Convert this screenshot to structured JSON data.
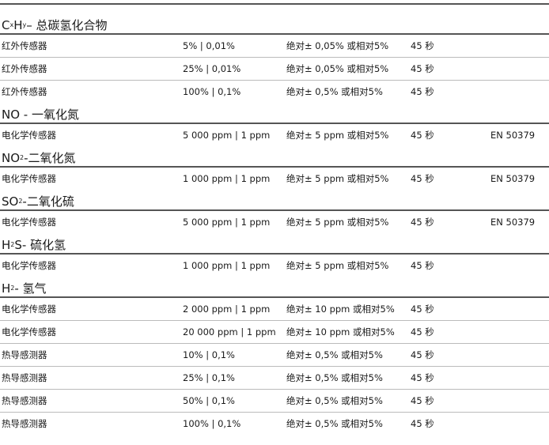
{
  "groups": [
    {
      "title_parts": [
        "C",
        "x",
        "H",
        "y",
        " – 总碳氢化合物"
      ],
      "rows": [
        [
          "红外传感器",
          "5% | 0,01%",
          "绝对± 0,05% 或相对5%",
          "45 秒",
          ""
        ],
        [
          "红外传感器",
          "25% | 0,01%",
          "绝对± 0,05% 或相对5%",
          "45 秒",
          ""
        ],
        [
          "红外传感器",
          "100% | 0,1%",
          "绝对± 0,5% 或相对5%",
          "45 秒",
          ""
        ]
      ]
    },
    {
      "title_parts": [
        "NO - 一氧化氮"
      ],
      "rows": [
        [
          "电化学传感器",
          "5 000 ppm | 1 ppm",
          "绝对± 5 ppm 或相对5%",
          "45 秒",
          "EN 50379"
        ]
      ]
    },
    {
      "title_parts": [
        "NO",
        "2",
        " -二氧化氮"
      ],
      "rows": [
        [
          "电化学传感器",
          "1 000 ppm | 1 ppm",
          "绝对± 5 ppm 或相对5%",
          "45 秒",
          "EN 50379"
        ]
      ]
    },
    {
      "title_parts": [
        "SO",
        "2",
        " -二氧化硫"
      ],
      "rows": [
        [
          "电化学传感器",
          "5 000 ppm | 1 ppm",
          "绝对± 5 ppm 或相对5%",
          "45 秒",
          "EN 50379"
        ]
      ]
    },
    {
      "title_parts": [
        "H",
        "2",
        "S- 硫化氢"
      ],
      "rows": [
        [
          "电化学传感器",
          "1 000 ppm | 1 ppm",
          "绝对± 5 ppm 或相对5%",
          "45 秒",
          ""
        ]
      ]
    },
    {
      "title_parts": [
        "H",
        "2",
        " - 氢气"
      ],
      "rows": [
        [
          "电化学传感器",
          "2 000 ppm | 1 ppm",
          "绝对± 10 ppm 或相对5%",
          "45 秒",
          ""
        ],
        [
          "电化学传感器",
          "20 000 ppm | 1 ppm",
          "绝对± 10 ppm 或相对5%",
          "45 秒",
          ""
        ],
        [
          "热导感测器",
          "10% | 0,1%",
          "绝对± 0,5% 或相对5%",
          "45 秒",
          ""
        ],
        [
          "热导感测器",
          "25% | 0,1%",
          "绝对± 0,5% 或相对5%",
          "45 秒",
          ""
        ],
        [
          "热导感测器",
          "50% | 0,1%",
          "绝对± 0,5% 或相对5%",
          "45 秒",
          ""
        ],
        [
          "热导感测器",
          "100% | 0,1%",
          "绝对± 0,5% 或相对5%",
          "45 秒",
          ""
        ]
      ]
    }
  ]
}
